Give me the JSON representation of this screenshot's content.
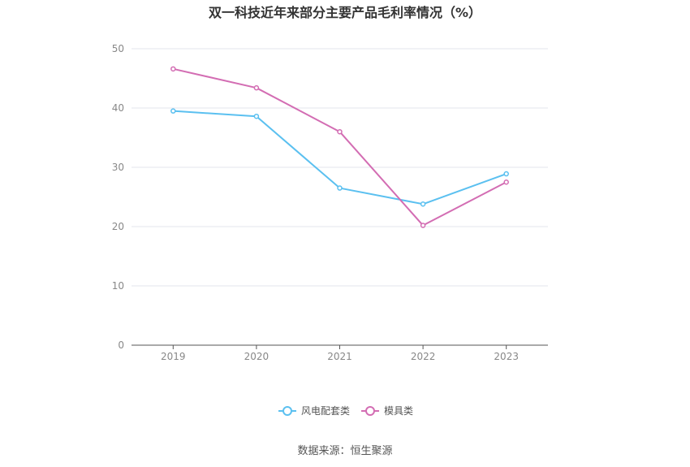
{
  "chart_data": {
    "type": "line",
    "title": "双一科技近年来部分主要产品毛利率情况（%）",
    "categories": [
      "2019",
      "2020",
      "2021",
      "2022",
      "2023"
    ],
    "ylim": [
      0,
      50
    ],
    "yticks": [
      0,
      10,
      20,
      30,
      40,
      50
    ],
    "grid": true,
    "legend_position": "bottom",
    "series": [
      {
        "name": "风电配套类",
        "color": "#5bc0f0",
        "values": [
          39.5,
          38.6,
          26.5,
          23.8,
          28.9
        ]
      },
      {
        "name": "模具类",
        "color": "#d36db3",
        "values": [
          46.6,
          43.4,
          36.0,
          20.2,
          27.5
        ]
      }
    ]
  },
  "source": "数据来源：恒生聚源"
}
